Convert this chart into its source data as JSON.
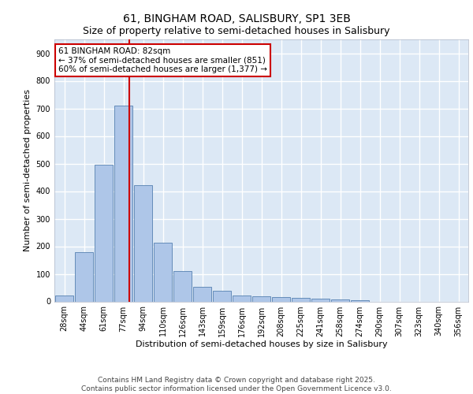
{
  "title_line1": "61, BINGHAM ROAD, SALISBURY, SP1 3EB",
  "title_line2": "Size of property relative to semi-detached houses in Salisbury",
  "xlabel": "Distribution of semi-detached houses by size in Salisbury",
  "ylabel": "Number of semi-detached properties",
  "bar_labels": [
    "28sqm",
    "44sqm",
    "61sqm",
    "77sqm",
    "94sqm",
    "110sqm",
    "126sqm",
    "143sqm",
    "159sqm",
    "176sqm",
    "192sqm",
    "208sqm",
    "225sqm",
    "241sqm",
    "258sqm",
    "274sqm",
    "290sqm",
    "307sqm",
    "323sqm",
    "340sqm",
    "356sqm"
  ],
  "bar_values": [
    22,
    180,
    497,
    710,
    422,
    213,
    110,
    52,
    40,
    22,
    18,
    15,
    13,
    10,
    8,
    5,
    0,
    0,
    0,
    0,
    0
  ],
  "bar_color": "#aec6e8",
  "bar_edge_color": "#5580b0",
  "background_color": "#dce8f5",
  "grid_color": "#ffffff",
  "vline_color": "#cc0000",
  "vline_x": 3.3,
  "annotation_text": "61 BINGHAM ROAD: 82sqm\n← 37% of semi-detached houses are smaller (851)\n60% of semi-detached houses are larger (1,377) →",
  "annotation_box_color": "#ffffff",
  "annotation_box_edge": "#cc0000",
  "ylim": [
    0,
    950
  ],
  "yticks": [
    0,
    100,
    200,
    300,
    400,
    500,
    600,
    700,
    800,
    900
  ],
  "footer_line1": "Contains HM Land Registry data © Crown copyright and database right 2025.",
  "footer_line2": "Contains public sector information licensed under the Open Government Licence v3.0.",
  "title_fontsize": 10,
  "subtitle_fontsize": 9,
  "axis_label_fontsize": 8,
  "tick_fontsize": 7,
  "annotation_fontsize": 7.5,
  "footer_fontsize": 6.5
}
